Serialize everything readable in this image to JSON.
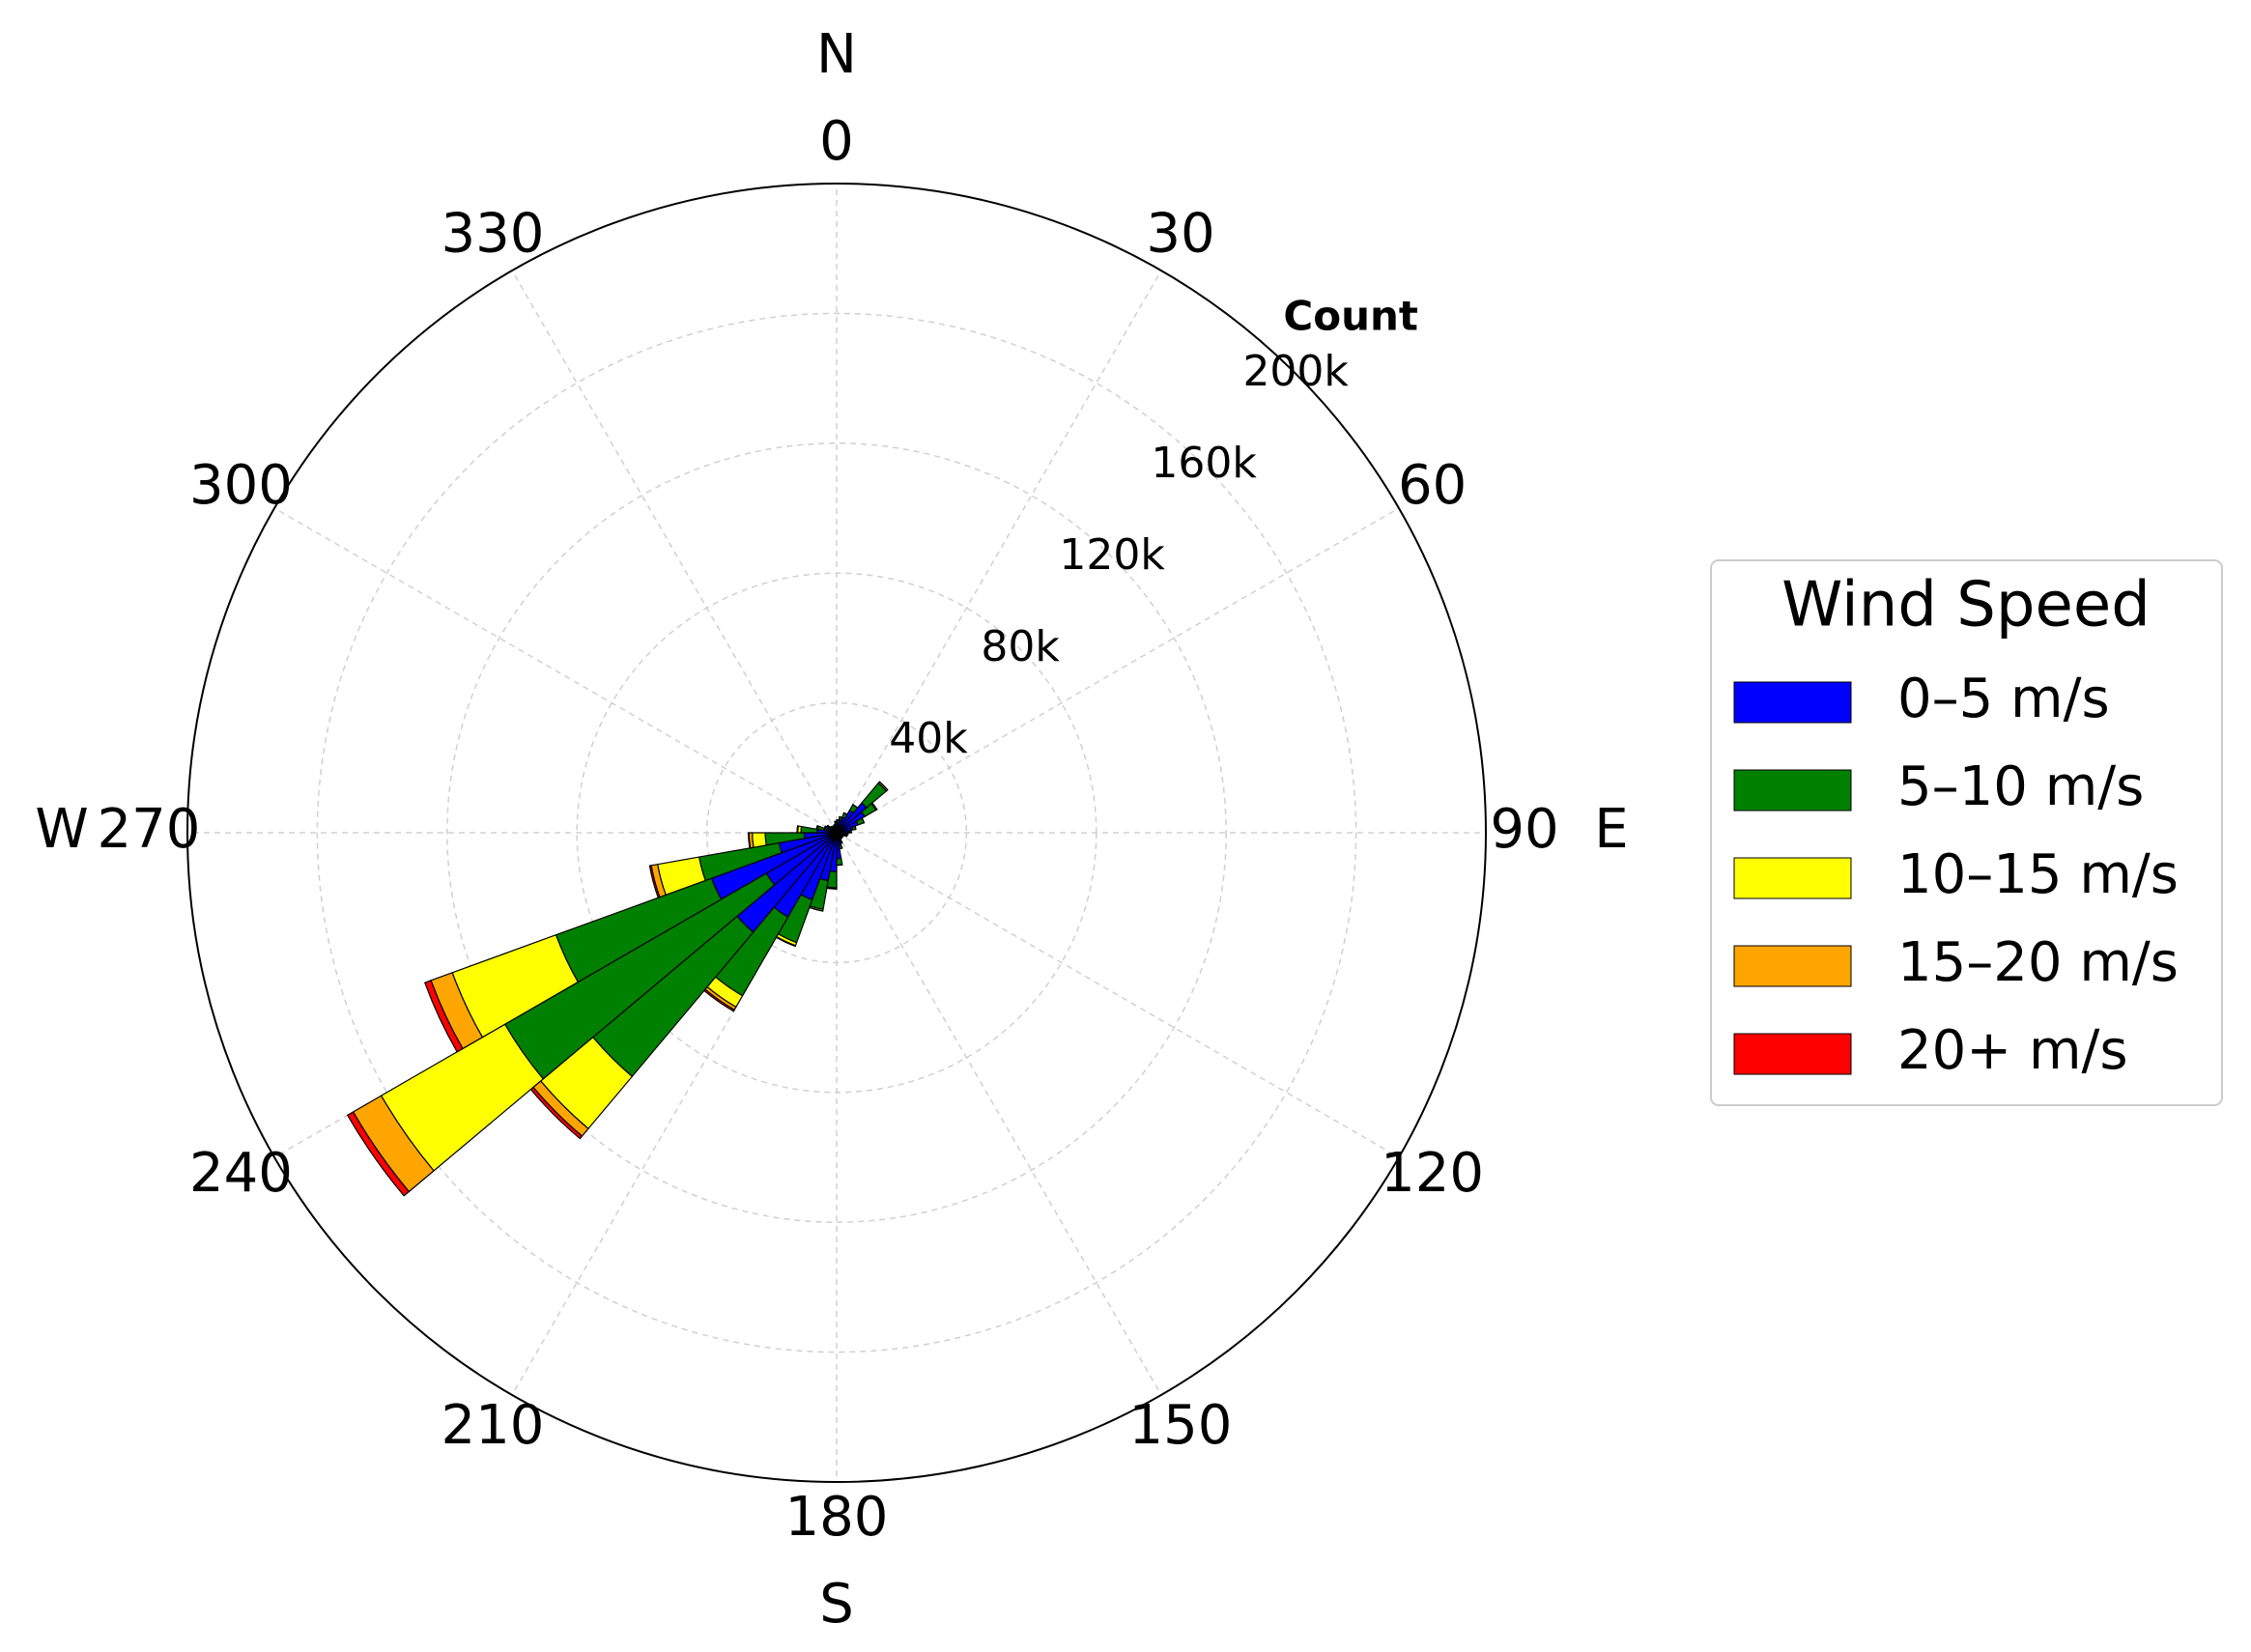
{
  "chart_data": {
    "type": "windrose",
    "x": [
      5,
      15,
      25,
      35,
      45,
      55,
      65,
      75,
      85,
      95,
      105,
      115,
      125,
      135,
      145,
      155,
      165,
      175,
      185,
      195,
      205,
      215,
      225,
      235,
      245,
      255,
      265,
      275,
      285,
      295,
      305,
      315,
      325,
      335,
      345,
      355
    ],
    "xlim": [
      0,
      360
    ],
    "xticks": [
      0,
      30,
      60,
      90,
      120,
      150,
      180,
      210,
      240,
      270,
      300,
      330
    ],
    "compass_ticks": [
      {
        "value": 0,
        "label": "N"
      },
      {
        "value": 90,
        "label": "E"
      },
      {
        "value": 180,
        "label": "S"
      },
      {
        "value": 270,
        "label": "W"
      }
    ],
    "ylim": [
      0,
      200000
    ],
    "yticks": [
      {
        "value": 40000,
        "label": "40k"
      },
      {
        "value": 80000,
        "label": "80k"
      },
      {
        "value": 120000,
        "label": "120k"
      },
      {
        "value": 160000,
        "label": "160k"
      },
      {
        "value": 200000,
        "label": "200k"
      }
    ],
    "ylabel": "Count",
    "grid": true,
    "legend": "right",
    "legend_title": "Wind Speed",
    "series": [
      {
        "name": "0–5 m/s",
        "color": "#0000ff",
        "values": [
          3000,
          4000,
          5000,
          8000,
          12000,
          10000,
          7000,
          5000,
          4000,
          3000,
          3000,
          2000,
          2000,
          2000,
          2000,
          3000,
          4000,
          8000,
          12000,
          15000,
          22000,
          30000,
          40000,
          25000,
          41000,
          18000,
          10000,
          6000,
          4000,
          3000,
          3000,
          2000,
          2000,
          2000,
          2000,
          3000
        ]
      },
      {
        "name": "5–10 m/s",
        "color": "#008000",
        "values": [
          1000,
          1000,
          1500,
          2000,
          8000,
          4000,
          2000,
          1000,
          500,
          500,
          300,
          300,
          200,
          200,
          300,
          500,
          1000,
          2000,
          5000,
          9000,
          14000,
          28000,
          58000,
          93000,
          51000,
          25000,
          12000,
          5000,
          2000,
          1000,
          500,
          500,
          300,
          300,
          500,
          500
        ]
      },
      {
        "name": "10–15 m/s",
        "color": "#ffff00",
        "values": [
          0,
          0,
          0,
          0,
          500,
          300,
          0,
          0,
          0,
          0,
          0,
          0,
          0,
          0,
          0,
          0,
          0,
          0,
          300,
          500,
          1000,
          4000,
          21000,
          44000,
          34000,
          13000,
          4000,
          1000,
          300,
          0,
          0,
          0,
          0,
          0,
          0,
          0
        ]
      },
      {
        "name": "15–20 m/s",
        "color": "#ffa500",
        "values": [
          0,
          0,
          0,
          0,
          0,
          0,
          0,
          0,
          0,
          0,
          0,
          0,
          0,
          0,
          0,
          0,
          0,
          0,
          0,
          0,
          200,
          1000,
          3000,
          10000,
          7000,
          2000,
          1000,
          200,
          0,
          0,
          0,
          0,
          0,
          0,
          0,
          0
        ]
      },
      {
        "name": "20+ m/s",
        "color": "#ff0000",
        "values": [
          0,
          0,
          0,
          0,
          0,
          0,
          0,
          0,
          0,
          0,
          0,
          0,
          0,
          0,
          0,
          0,
          0,
          0,
          0,
          0,
          0,
          500,
          1000,
          2000,
          2000,
          500,
          200,
          0,
          0,
          0,
          0,
          0,
          0,
          0,
          0,
          0
        ]
      }
    ]
  }
}
